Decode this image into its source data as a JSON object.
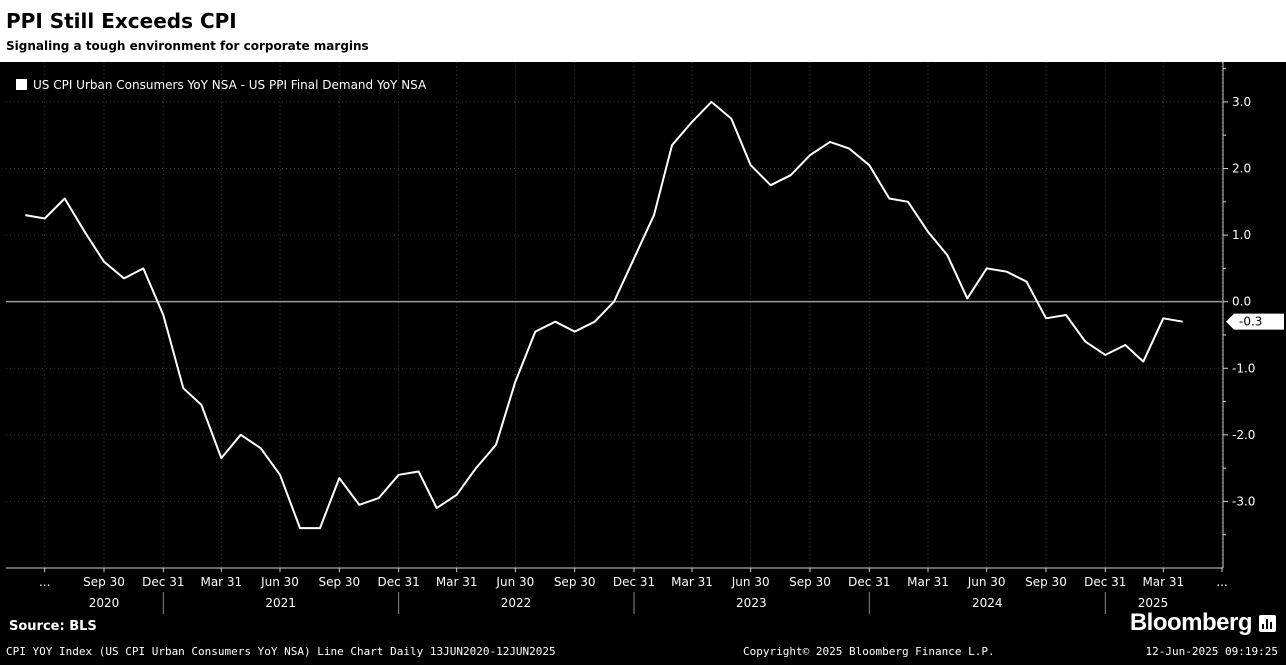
{
  "title": "PPI Still Exceeds CPI",
  "subtitle": "Signaling a tough environment for corporate margins",
  "source": "Source: BLS",
  "brand": {
    "name": "Bloomberg",
    "icon": "bloomberg-terminal-icon"
  },
  "footer": {
    "description": "CPI YOY Index (US CPI Urban Consumers YoY NSA) Line Chart  Daily 13JUN2020-12JUN2025",
    "copyright": "Copyright© 2025 Bloomberg Finance L.P.",
    "timestamp": "12-Jun-2025 09:19:25"
  },
  "colors": {
    "background": "#000000",
    "line": "#ffffff",
    "grid": "#3a3a3a",
    "zero_line": "#9a9a9a"
  },
  "chart_data": {
    "type": "line",
    "title": "PPI Still Exceeds CPI",
    "subtitle": "Signaling a tough environment for corporate margins",
    "legend": {
      "entries": [
        "US CPI Urban Consumers YoY NSA - US PPI Final Demand YoY NSA"
      ],
      "position": "top-left"
    },
    "y_axis": {
      "position": "right",
      "ticks": [
        3.0,
        2.0,
        1.0,
        0.0,
        -1.0,
        -2.0,
        -3.0
      ],
      "tick_labels": [
        "3.0",
        "2.0",
        "1.0",
        "0.0",
        "-1.0",
        "-2.0",
        "-3.0"
      ],
      "range": [
        -4.0,
        3.6
      ]
    },
    "x_axis": {
      "range": [
        "2020-05-01",
        "2025-06-30"
      ],
      "ticks": [
        {
          "date": "2020-06-30",
          "label": "..."
        },
        {
          "date": "2020-09-30",
          "label": "Sep 30"
        },
        {
          "date": "2020-12-31",
          "label": "Dec 31"
        },
        {
          "date": "2021-03-31",
          "label": "Mar 31"
        },
        {
          "date": "2021-06-30",
          "label": "Jun 30"
        },
        {
          "date": "2021-09-30",
          "label": "Sep 30"
        },
        {
          "date": "2021-12-31",
          "label": "Dec 31"
        },
        {
          "date": "2022-03-31",
          "label": "Mar 31"
        },
        {
          "date": "2022-06-30",
          "label": "Jun 30"
        },
        {
          "date": "2022-09-30",
          "label": "Sep 30"
        },
        {
          "date": "2022-12-31",
          "label": "Dec 31"
        },
        {
          "date": "2023-03-31",
          "label": "Mar 31"
        },
        {
          "date": "2023-06-30",
          "label": "Jun 30"
        },
        {
          "date": "2023-09-30",
          "label": "Sep 30"
        },
        {
          "date": "2023-12-31",
          "label": "Dec 31"
        },
        {
          "date": "2024-03-31",
          "label": "Mar 31"
        },
        {
          "date": "2024-06-30",
          "label": "Jun 30"
        },
        {
          "date": "2024-09-30",
          "label": "Sep 30"
        },
        {
          "date": "2024-12-31",
          "label": "Dec 31"
        },
        {
          "date": "2025-03-31",
          "label": "Mar 31"
        },
        {
          "date": "2025-06-30",
          "label": "..."
        }
      ],
      "years": [
        {
          "label": "2020",
          "center": "2020-09-30"
        },
        {
          "label": "2021",
          "center": "2021-07-01"
        },
        {
          "label": "2022",
          "center": "2022-07-01"
        },
        {
          "label": "2023",
          "center": "2023-07-01"
        },
        {
          "label": "2024",
          "center": "2024-07-01"
        },
        {
          "label": "2025",
          "center": "2025-03-15"
        }
      ],
      "year_dividers": [
        "2020-12-31",
        "2021-12-31",
        "2022-12-31",
        "2023-12-31",
        "2024-12-31"
      ]
    },
    "grid": true,
    "zero_line": true,
    "last_value_label": "-0.3",
    "series": [
      {
        "name": "US CPI Urban Consumers YoY NSA - US PPI Final Demand YoY NSA",
        "color": "#ffffff",
        "points": [
          {
            "x": "2020-05-31",
            "y": 1.3
          },
          {
            "x": "2020-06-30",
            "y": 1.25
          },
          {
            "x": "2020-07-31",
            "y": 1.55
          },
          {
            "x": "2020-08-31",
            "y": 1.05
          },
          {
            "x": "2020-09-30",
            "y": 0.6
          },
          {
            "x": "2020-10-31",
            "y": 0.35
          },
          {
            "x": "2020-11-30",
            "y": 0.5
          },
          {
            "x": "2020-12-31",
            "y": -0.2
          },
          {
            "x": "2021-01-31",
            "y": -1.3
          },
          {
            "x": "2021-02-28",
            "y": -1.55
          },
          {
            "x": "2021-03-31",
            "y": -2.35
          },
          {
            "x": "2021-04-30",
            "y": -2.0
          },
          {
            "x": "2021-05-31",
            "y": -2.2
          },
          {
            "x": "2021-06-30",
            "y": -2.6
          },
          {
            "x": "2021-07-31",
            "y": -3.4
          },
          {
            "x": "2021-08-31",
            "y": -3.4
          },
          {
            "x": "2021-09-30",
            "y": -2.65
          },
          {
            "x": "2021-10-31",
            "y": -3.05
          },
          {
            "x": "2021-11-30",
            "y": -2.95
          },
          {
            "x": "2021-12-31",
            "y": -2.6
          },
          {
            "x": "2022-01-31",
            "y": -2.55
          },
          {
            "x": "2022-02-28",
            "y": -3.1
          },
          {
            "x": "2022-03-31",
            "y": -2.9
          },
          {
            "x": "2022-04-30",
            "y": -2.5
          },
          {
            "x": "2022-05-31",
            "y": -2.15
          },
          {
            "x": "2022-06-30",
            "y": -1.2
          },
          {
            "x": "2022-07-31",
            "y": -0.45
          },
          {
            "x": "2022-08-31",
            "y": -0.3
          },
          {
            "x": "2022-09-30",
            "y": -0.45
          },
          {
            "x": "2022-10-31",
            "y": -0.3
          },
          {
            "x": "2022-11-30",
            "y": 0.0
          },
          {
            "x": "2022-12-31",
            "y": 0.65
          },
          {
            "x": "2023-01-31",
            "y": 1.3
          },
          {
            "x": "2023-02-28",
            "y": 2.35
          },
          {
            "x": "2023-03-31",
            "y": 2.7
          },
          {
            "x": "2023-04-30",
            "y": 3.0
          },
          {
            "x": "2023-05-31",
            "y": 2.75
          },
          {
            "x": "2023-06-30",
            "y": 2.05
          },
          {
            "x": "2023-07-31",
            "y": 1.75
          },
          {
            "x": "2023-08-31",
            "y": 1.9
          },
          {
            "x": "2023-09-30",
            "y": 2.2
          },
          {
            "x": "2023-10-31",
            "y": 2.4
          },
          {
            "x": "2023-11-30",
            "y": 2.3
          },
          {
            "x": "2023-12-31",
            "y": 2.05
          },
          {
            "x": "2024-01-31",
            "y": 1.55
          },
          {
            "x": "2024-02-29",
            "y": 1.5
          },
          {
            "x": "2024-03-31",
            "y": 1.05
          },
          {
            "x": "2024-04-30",
            "y": 0.7
          },
          {
            "x": "2024-05-31",
            "y": 0.05
          },
          {
            "x": "2024-06-30",
            "y": 0.5
          },
          {
            "x": "2024-07-31",
            "y": 0.45
          },
          {
            "x": "2024-08-31",
            "y": 0.3
          },
          {
            "x": "2024-09-30",
            "y": -0.25
          },
          {
            "x": "2024-10-31",
            "y": -0.2
          },
          {
            "x": "2024-11-30",
            "y": -0.6
          },
          {
            "x": "2024-12-31",
            "y": -0.8
          },
          {
            "x": "2025-01-31",
            "y": -0.65
          },
          {
            "x": "2025-02-28",
            "y": -0.9
          },
          {
            "x": "2025-03-31",
            "y": -0.25
          },
          {
            "x": "2025-04-30",
            "y": -0.3
          }
        ]
      }
    ]
  }
}
